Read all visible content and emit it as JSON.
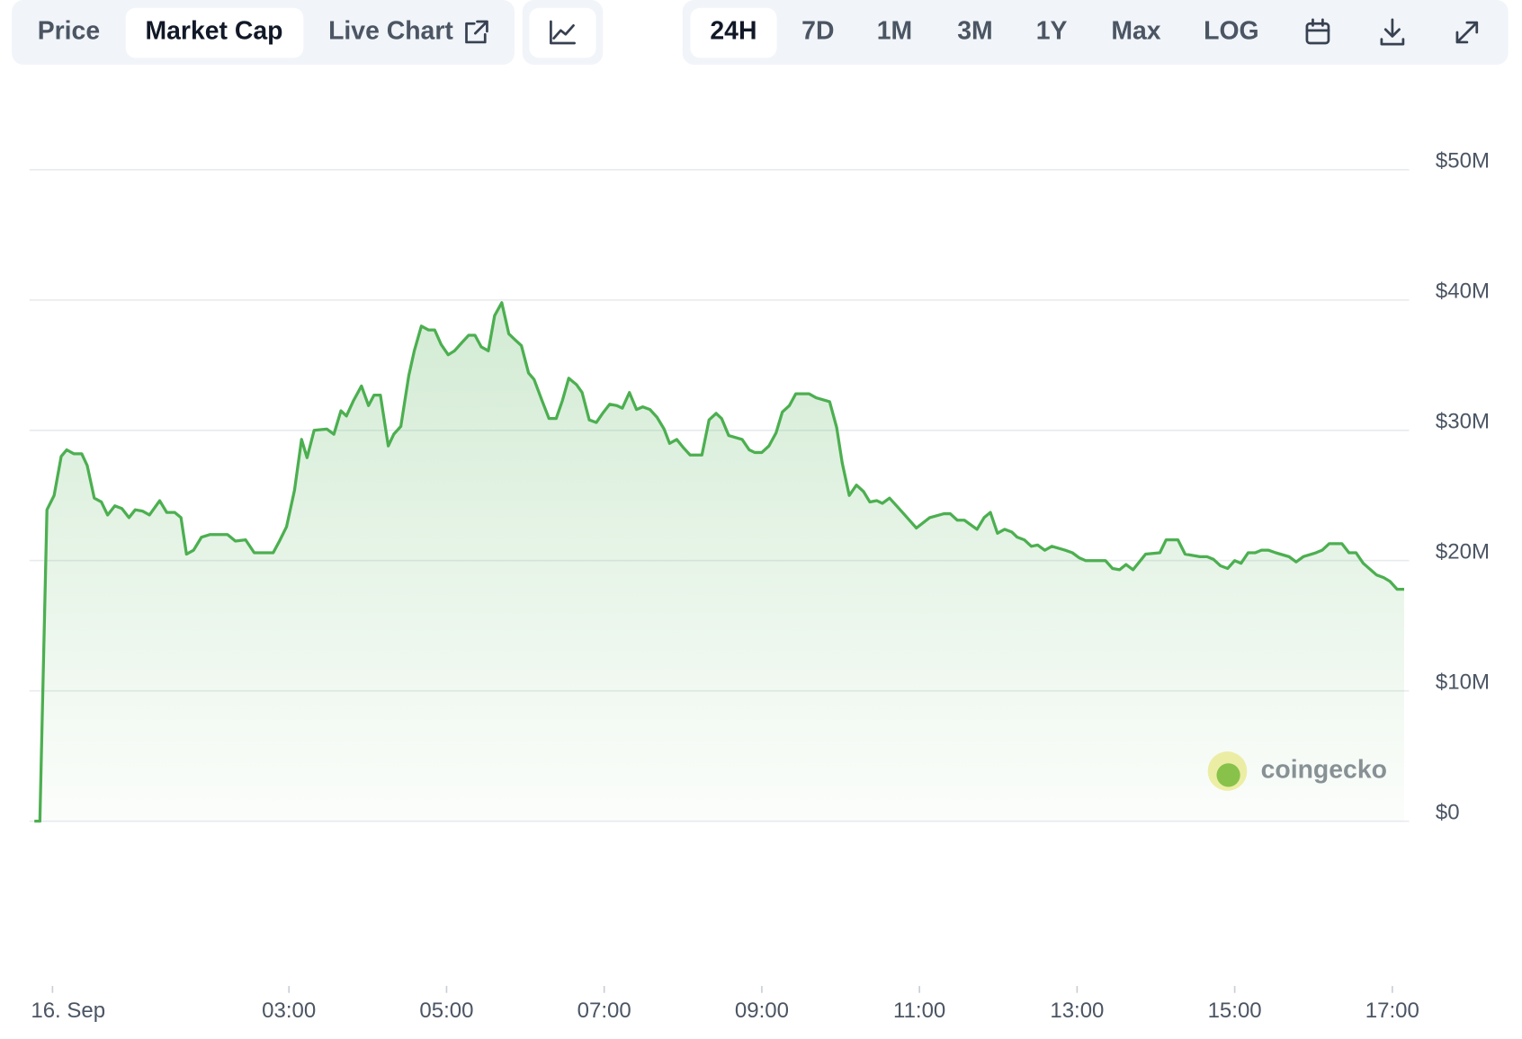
{
  "toolbar": {
    "tabs": [
      "Price",
      "Market Cap",
      "Live Chart"
    ],
    "ranges": [
      "24H",
      "7D",
      "1M",
      "3M",
      "1Y",
      "Max",
      "LOG"
    ]
  },
  "chart_data": {
    "type": "line",
    "color": "#4caf50",
    "watermark": "coingecko",
    "x": [
      -0.23,
      -0.16,
      -0.07,
      0.02,
      0.11,
      0.18,
      0.27,
      0.37,
      0.44,
      0.53,
      0.62,
      0.7,
      0.79,
      0.88,
      0.97,
      1.05,
      1.14,
      1.23,
      1.36,
      1.45,
      1.55,
      1.63,
      1.7,
      1.79,
      1.89,
      2.0,
      2.22,
      2.32,
      2.45,
      2.56,
      2.8,
      2.88,
      2.97,
      3.07,
      3.16,
      3.23,
      3.32,
      3.48,
      3.57,
      3.66,
      3.73,
      3.82,
      3.92,
      4.01,
      4.08,
      4.16,
      4.26,
      4.33,
      4.42,
      4.52,
      4.59,
      4.68,
      4.77,
      4.85,
      4.93,
      5.02,
      5.1,
      5.19,
      5.28,
      5.36,
      5.44,
      5.53,
      5.61,
      5.7,
      5.79,
      5.86,
      5.95,
      6.04,
      6.11,
      6.21,
      6.3,
      6.39,
      6.47,
      6.55,
      6.65,
      6.72,
      6.81,
      6.9,
      6.98,
      7.07,
      7.16,
      7.23,
      7.32,
      7.41,
      7.49,
      7.58,
      7.67,
      7.76,
      7.83,
      7.92,
      8.0,
      8.09,
      8.24,
      8.33,
      8.42,
      8.49,
      8.58,
      8.75,
      8.84,
      8.91,
      9.0,
      9.09,
      9.18,
      9.26,
      9.35,
      9.43,
      9.6,
      9.69,
      9.86,
      9.95,
      10.02,
      10.11,
      10.2,
      10.29,
      10.37,
      10.46,
      10.53,
      10.62,
      10.71,
      10.8,
      10.96,
      11.13,
      11.31,
      11.39,
      11.48,
      11.57,
      11.73,
      11.82,
      11.9,
      11.99,
      12.08,
      12.17,
      12.24,
      12.33,
      12.42,
      12.5,
      12.59,
      12.68,
      12.85,
      12.94,
      13.03,
      13.11,
      13.36,
      13.45,
      13.54,
      13.62,
      13.71,
      13.87,
      14.05,
      14.13,
      14.28,
      14.37,
      14.56,
      14.65,
      14.73,
      14.82,
      14.91,
      15.0,
      15.08,
      15.17,
      15.26,
      15.34,
      15.43,
      15.52,
      15.69,
      15.78,
      15.87,
      16.03,
      16.11,
      16.2,
      16.36,
      16.45,
      16.54,
      16.63,
      16.8,
      16.89,
      16.97,
      17.06,
      17.15
    ],
    "values": [
      0,
      0,
      23.9,
      25.0,
      28.0,
      28.5,
      28.2,
      28.2,
      27.3,
      24.8,
      24.5,
      23.5,
      24.2,
      24.0,
      23.3,
      23.9,
      23.8,
      23.5,
      24.6,
      23.7,
      23.7,
      23.3,
      20.5,
      20.8,
      21.8,
      22.0,
      22.0,
      21.5,
      21.6,
      20.6,
      20.6,
      21.5,
      22.6,
      25.4,
      29.3,
      27.9,
      30.0,
      30.1,
      29.7,
      31.5,
      31.1,
      32.3,
      33.4,
      31.9,
      32.7,
      32.7,
      28.8,
      29.7,
      30.3,
      34.2,
      36.1,
      38.0,
      37.7,
      37.7,
      36.6,
      35.8,
      36.1,
      36.7,
      37.3,
      37.3,
      36.4,
      36.1,
      38.8,
      39.8,
      37.4,
      37.0,
      36.5,
      34.4,
      33.9,
      32.3,
      30.9,
      30.9,
      32.3,
      34.0,
      33.5,
      32.9,
      30.8,
      30.6,
      31.3,
      32.0,
      31.9,
      31.7,
      32.9,
      31.6,
      31.8,
      31.6,
      31.0,
      30.1,
      29.0,
      29.3,
      28.7,
      28.1,
      28.1,
      30.8,
      31.3,
      30.9,
      29.6,
      29.3,
      28.5,
      28.3,
      28.3,
      28.8,
      29.8,
      31.4,
      31.9,
      32.8,
      32.8,
      32.5,
      32.2,
      30.2,
      27.5,
      25.0,
      25.8,
      25.3,
      24.5,
      24.6,
      24.4,
      24.8,
      24.2,
      23.6,
      22.5,
      23.3,
      23.6,
      23.6,
      23.1,
      23.1,
      22.4,
      23.3,
      23.7,
      22.1,
      22.4,
      22.2,
      21.8,
      21.6,
      21.1,
      21.2,
      20.8,
      21.1,
      20.8,
      20.6,
      20.2,
      20.0,
      20.0,
      19.4,
      19.3,
      19.7,
      19.3,
      20.5,
      20.6,
      21.6,
      21.6,
      20.5,
      20.3,
      20.3,
      20.1,
      19.6,
      19.4,
      20.0,
      19.8,
      20.6,
      20.6,
      20.8,
      20.8,
      20.6,
      20.3,
      19.9,
      20.3,
      20.6,
      20.8,
      21.3,
      21.3,
      20.6,
      20.6,
      19.8,
      18.9,
      18.7,
      18.4,
      17.8,
      17.8
    ],
    "xlim": [
      -0.23,
      17.15
    ],
    "xticks": [
      {
        "value": 0,
        "label": "16. Sep"
      },
      {
        "value": 3,
        "label": "03:00"
      },
      {
        "value": 5,
        "label": "05:00"
      },
      {
        "value": 7,
        "label": "07:00"
      },
      {
        "value": 9,
        "label": "09:00"
      },
      {
        "value": 11,
        "label": "11:00"
      },
      {
        "value": 13,
        "label": "13:00"
      },
      {
        "value": 15,
        "label": "15:00"
      },
      {
        "value": 17,
        "label": "17:00"
      }
    ],
    "ylim": [
      0,
      50
    ],
    "yticks": [
      {
        "value": 0,
        "label": "$0"
      },
      {
        "value": 10,
        "label": "$10M"
      },
      {
        "value": 20,
        "label": "$20M"
      },
      {
        "value": 30,
        "label": "$30M"
      },
      {
        "value": 40,
        "label": "$40M"
      },
      {
        "value": 50,
        "label": "$50M"
      }
    ],
    "grid": true
  }
}
